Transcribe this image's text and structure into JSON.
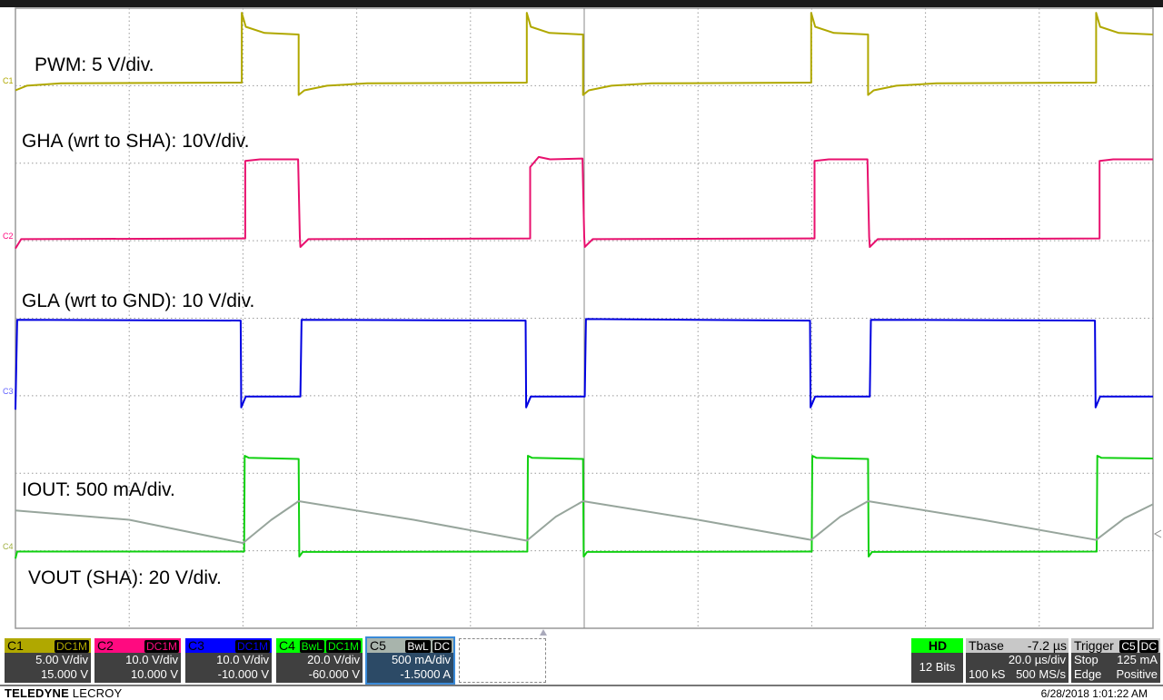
{
  "chart_data": {
    "type": "line",
    "xlabel": "",
    "ylabel": "",
    "xlim": [
      -100,
      100
    ],
    "x_unit": "µs",
    "grid": true,
    "grid_divisions": {
      "horizontal": 10,
      "vertical": 8
    },
    "annotations": [
      "PWM: 5 V/div.",
      "GHA (wrt to SHA): 10V/div.",
      "GLA (wrt to GND): 10 V/div.",
      "IOUT: 500 mA/div.",
      "VOUT (SHA): 20 V/div."
    ],
    "series": [
      {
        "channel": "C1",
        "unit": "V",
        "scale": 5,
        "offset": 15,
        "color": "#b0a800",
        "points": [
          [
            -100,
            -0.3
          ],
          [
            -98,
            0
          ],
          [
            -92,
            0.15
          ],
          [
            -60.2,
            0.2
          ],
          [
            -60.2,
            4.7
          ],
          [
            -59.5,
            3.8
          ],
          [
            -56.2,
            3.4
          ],
          [
            -50.2,
            3.3
          ],
          [
            -50.2,
            -0.6
          ],
          [
            -49.2,
            -0.3
          ],
          [
            -45.2,
            0
          ],
          [
            -38.2,
            0.15
          ],
          [
            -10.1,
            0.2
          ],
          [
            -10.1,
            4.7
          ],
          [
            -9.4,
            3.8
          ],
          [
            -6.1,
            3.4
          ],
          [
            -0.2,
            3.3
          ],
          [
            -0.2,
            -0.6
          ],
          [
            0.8,
            -0.3
          ],
          [
            4.8,
            0
          ],
          [
            11.8,
            0.15
          ],
          [
            39.9,
            0.2
          ],
          [
            39.9,
            4.7
          ],
          [
            40.6,
            3.8
          ],
          [
            43.9,
            3.4
          ],
          [
            49.9,
            3.3
          ],
          [
            49.9,
            -0.6
          ],
          [
            50.9,
            -0.3
          ],
          [
            54.9,
            0
          ],
          [
            61.9,
            0.15
          ],
          [
            90,
            0.2
          ],
          [
            90,
            4.7
          ],
          [
            90.7,
            3.8
          ],
          [
            94,
            3.4
          ],
          [
            100,
            3.3
          ]
        ]
      },
      {
        "channel": "C2",
        "unit": "V",
        "scale": 10,
        "offset": 10,
        "color": "#e8106e",
        "points": [
          [
            -100,
            -1
          ],
          [
            -99,
            0.2
          ],
          [
            -59.6,
            0.3
          ],
          [
            -59.6,
            10.3
          ],
          [
            -57,
            10.5
          ],
          [
            -50.3,
            10.5
          ],
          [
            -50,
            0.5
          ],
          [
            -49.9,
            -0.8
          ],
          [
            -48.5,
            0.2
          ],
          [
            -9.5,
            0.3
          ],
          [
            -9.5,
            9.5
          ],
          [
            -8,
            10.8
          ],
          [
            -6,
            10.5
          ],
          [
            -0.3,
            10.6
          ],
          [
            0,
            0.5
          ],
          [
            0.1,
            -0.8
          ],
          [
            1.5,
            0.2
          ],
          [
            40.5,
            0.3
          ],
          [
            40.5,
            10.3
          ],
          [
            43,
            10.5
          ],
          [
            49.8,
            10.5
          ],
          [
            50.1,
            0.5
          ],
          [
            50.2,
            -0.8
          ],
          [
            51.6,
            0.2
          ],
          [
            90.6,
            0.3
          ],
          [
            90.6,
            10.3
          ],
          [
            93,
            10.5
          ],
          [
            100,
            10.5
          ]
        ]
      },
      {
        "channel": "C3",
        "unit": "V",
        "scale": 10,
        "offset": -10,
        "color": "#0000e0",
        "points": [
          [
            -100,
            -1.8
          ],
          [
            -99.7,
            9.8
          ],
          [
            -60.4,
            9.7
          ],
          [
            -60.3,
            -1.5
          ],
          [
            -59.5,
            -0.1
          ],
          [
            -49.9,
            -0.1
          ],
          [
            -49.7,
            9.8
          ],
          [
            -10.3,
            9.7
          ],
          [
            -10.2,
            -1.5
          ],
          [
            -9.4,
            -0.1
          ],
          [
            0.1,
            -0.1
          ],
          [
            0.3,
            9.9
          ],
          [
            39.7,
            9.7
          ],
          [
            39.8,
            -1.5
          ],
          [
            40.6,
            -0.1
          ],
          [
            50.2,
            -0.1
          ],
          [
            50.4,
            9.8
          ],
          [
            89.8,
            9.7
          ],
          [
            89.9,
            -1.5
          ],
          [
            90.7,
            -0.1
          ],
          [
            100,
            -0.1
          ]
        ]
      },
      {
        "channel": "C4",
        "unit": "V",
        "scale": 20,
        "offset": -60,
        "color": "#10d010",
        "points": [
          [
            -100,
            -2
          ],
          [
            -99.7,
            -0.2
          ],
          [
            -59.8,
            -0.2
          ],
          [
            -59.7,
            24.5
          ],
          [
            -59,
            24
          ],
          [
            -50.2,
            23.7
          ],
          [
            -50.1,
            -1.5
          ],
          [
            -49.5,
            -0.3
          ],
          [
            -10,
            -0.2
          ],
          [
            -9.9,
            24.5
          ],
          [
            -9.2,
            24
          ],
          [
            -0.2,
            23.7
          ],
          [
            -0.1,
            -1.5
          ],
          [
            0.5,
            -0.3
          ],
          [
            40,
            -0.2
          ],
          [
            40.1,
            24.5
          ],
          [
            40.8,
            24
          ],
          [
            49.9,
            23.7
          ],
          [
            50,
            -1.5
          ],
          [
            50.6,
            -0.3
          ],
          [
            90.1,
            -0.2
          ],
          [
            90.2,
            24.5
          ],
          [
            90.9,
            24
          ],
          [
            100,
            23.8
          ]
        ]
      },
      {
        "channel": "C5",
        "unit": "A",
        "scale": 0.5,
        "offset": -1.5,
        "color": "#97a59c",
        "points": [
          [
            -100,
            0.26
          ],
          [
            -80,
            0.2
          ],
          [
            -60,
            0.05
          ],
          [
            -55,
            0.2
          ],
          [
            -50.2,
            0.32
          ],
          [
            -30,
            0.2
          ],
          [
            -10.1,
            0.065
          ],
          [
            -5,
            0.22
          ],
          [
            -0.2,
            0.32
          ],
          [
            20,
            0.2
          ],
          [
            39.9,
            0.07
          ],
          [
            45,
            0.22
          ],
          [
            49.9,
            0.32
          ],
          [
            70,
            0.2
          ],
          [
            90,
            0.07
          ],
          [
            95,
            0.21
          ],
          [
            100,
            0.3
          ]
        ]
      }
    ]
  },
  "markers": [
    "C1",
    "C2",
    "C3",
    "C4"
  ],
  "channels": [
    {
      "name": "C1",
      "tags": [
        "DC1M"
      ],
      "vdiv": "5.00 V/div",
      "offset": "15.000 V",
      "color": "#b0a800",
      "tagcolor": "#b0a800"
    },
    {
      "name": "C2",
      "tags": [
        "DC1M"
      ],
      "vdiv": "10.0 V/div",
      "offset": "10.000 V",
      "color": "#ff0a80",
      "tagcolor": "#ff0a80"
    },
    {
      "name": "C3",
      "tags": [
        "DC1M"
      ],
      "vdiv": "10.0 V/div",
      "offset": "-10.000 V",
      "color": "#0000ff",
      "tagcolor": "#0000ff"
    },
    {
      "name": "C4",
      "tags": [
        "BwL",
        "DC1M"
      ],
      "vdiv": "20.0 V/div",
      "offset": "-60.000 V",
      "color": "#00ff00",
      "tagcolor": "#00ff00"
    },
    {
      "name": "C5",
      "tags": [
        "BwL",
        "DC"
      ],
      "vdiv": "500 mA/div",
      "offset": "-1.5000 A",
      "color": "#a8b4ac",
      "tagcolor": "#ffffff"
    }
  ],
  "hd": {
    "label": "HD",
    "bits": "12 Bits"
  },
  "timebase": {
    "label": "Tbase",
    "delay": "-7.2 µs",
    "tdiv": "20.0 µs/div",
    "samples": "100 kS",
    "rate": "500 MS/s"
  },
  "trigger": {
    "label": "Trigger",
    "source": "C5",
    "coupling": "DC",
    "mode": "Stop",
    "level": "125 mA",
    "type": "Edge",
    "slope": "Positive"
  },
  "footer": {
    "brand_bold": "TELEDYNE",
    "brand_light": " LECROY",
    "datetime": "6/28/2018 1:01:22 AM"
  }
}
